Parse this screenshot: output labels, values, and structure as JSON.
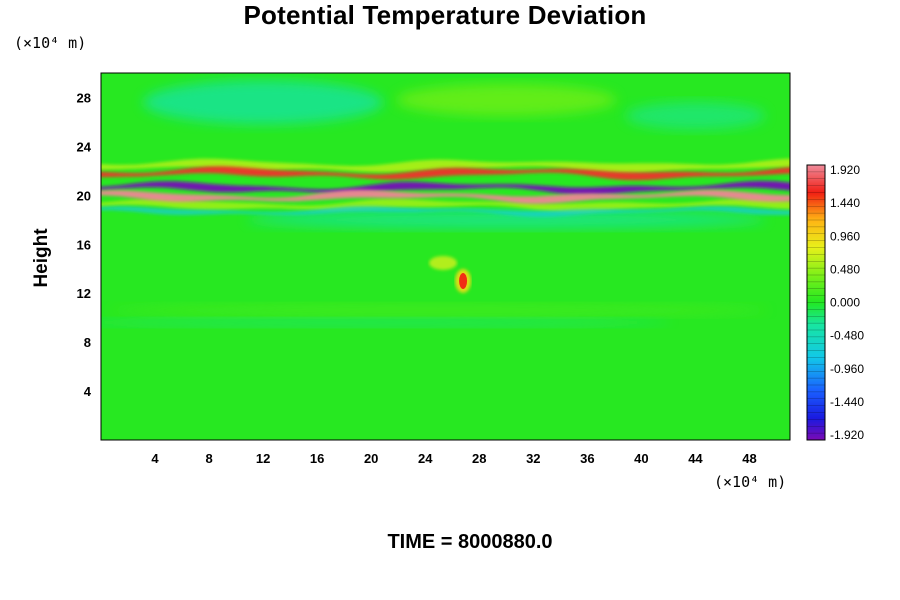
{
  "chart_data": {
    "type": "heatmap",
    "title": "Potential Temperature Deviation",
    "ylabel": "Height",
    "xunit": "(×10⁴ m)",
    "yunit": "(×10⁴ m)",
    "x_ticks": [
      "4",
      "8",
      "12",
      "16",
      "20",
      "24",
      "28",
      "32",
      "36",
      "40",
      "44",
      "48"
    ],
    "y_ticks": [
      "4",
      "8",
      "12",
      "16",
      "20",
      "24",
      "28"
    ],
    "xlim": [
      0,
      51
    ],
    "ylim": [
      0,
      30
    ],
    "colorbar": {
      "min": -1.92,
      "max": 1.92,
      "labels": [
        "1.920",
        "1.440",
        "0.960",
        "0.480",
        "0.000",
        "-0.480",
        "-0.960",
        "-1.440",
        "-1.920"
      ]
    },
    "features": [
      {
        "kind": "band",
        "y": 21.8,
        "amplitude": 1.6
      },
      {
        "kind": "band",
        "y": 20.6,
        "amplitude": -1.9
      },
      {
        "kind": "band",
        "y": 19.9,
        "amplitude": 1.9
      },
      {
        "kind": "spot",
        "x": 26.8,
        "y": 13.0,
        "amplitude": 1.5
      }
    ],
    "annotation": "TIME = 8000880.0"
  }
}
